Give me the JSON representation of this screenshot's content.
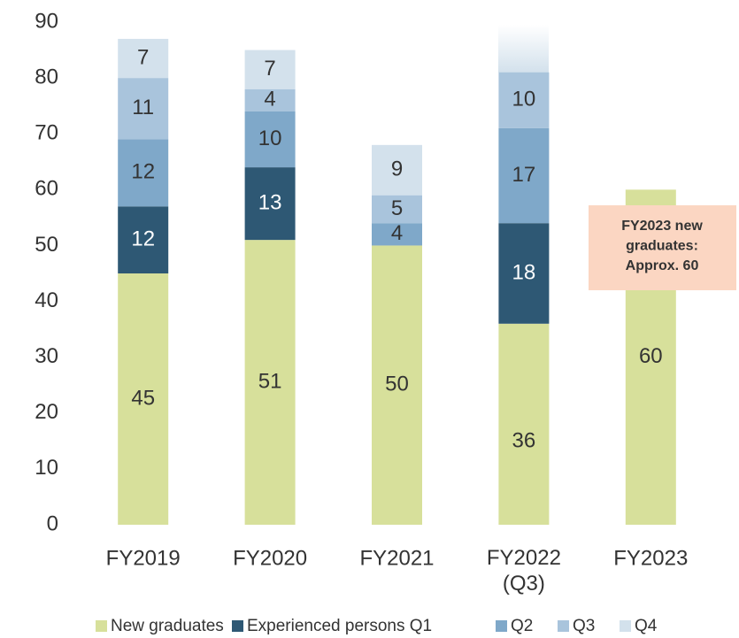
{
  "chart_data": {
    "type": "stacked_bar",
    "categories": [
      "FY2019",
      "FY2020",
      "FY2021",
      "FY2022\n(Q3)",
      "FY2023"
    ],
    "series": [
      {
        "name": "New graduates",
        "color": "#d7e09b",
        "values": [
          45,
          51,
          50,
          36,
          60
        ]
      },
      {
        "name": "Experienced persons Q1",
        "color": "#2e5874",
        "values": [
          12,
          13,
          null,
          18,
          null
        ]
      },
      {
        "name": "Q2",
        "color": "#7fa8c9",
        "values": [
          12,
          10,
          4,
          17,
          null
        ]
      },
      {
        "name": "Q3",
        "color": "#a9c4dc",
        "values": [
          11,
          4,
          5,
          10,
          null
        ]
      },
      {
        "name": "Q4",
        "color": "#d3e1ec",
        "values": [
          7,
          7,
          9,
          null,
          null
        ]
      }
    ],
    "ylim": [
      0,
      90
    ],
    "yticks": [
      0,
      10,
      20,
      30,
      40,
      50,
      60,
      70,
      80,
      90
    ],
    "grid": false,
    "annotation": "FY2023 new\ngraduates:\nApprox. 60"
  }
}
